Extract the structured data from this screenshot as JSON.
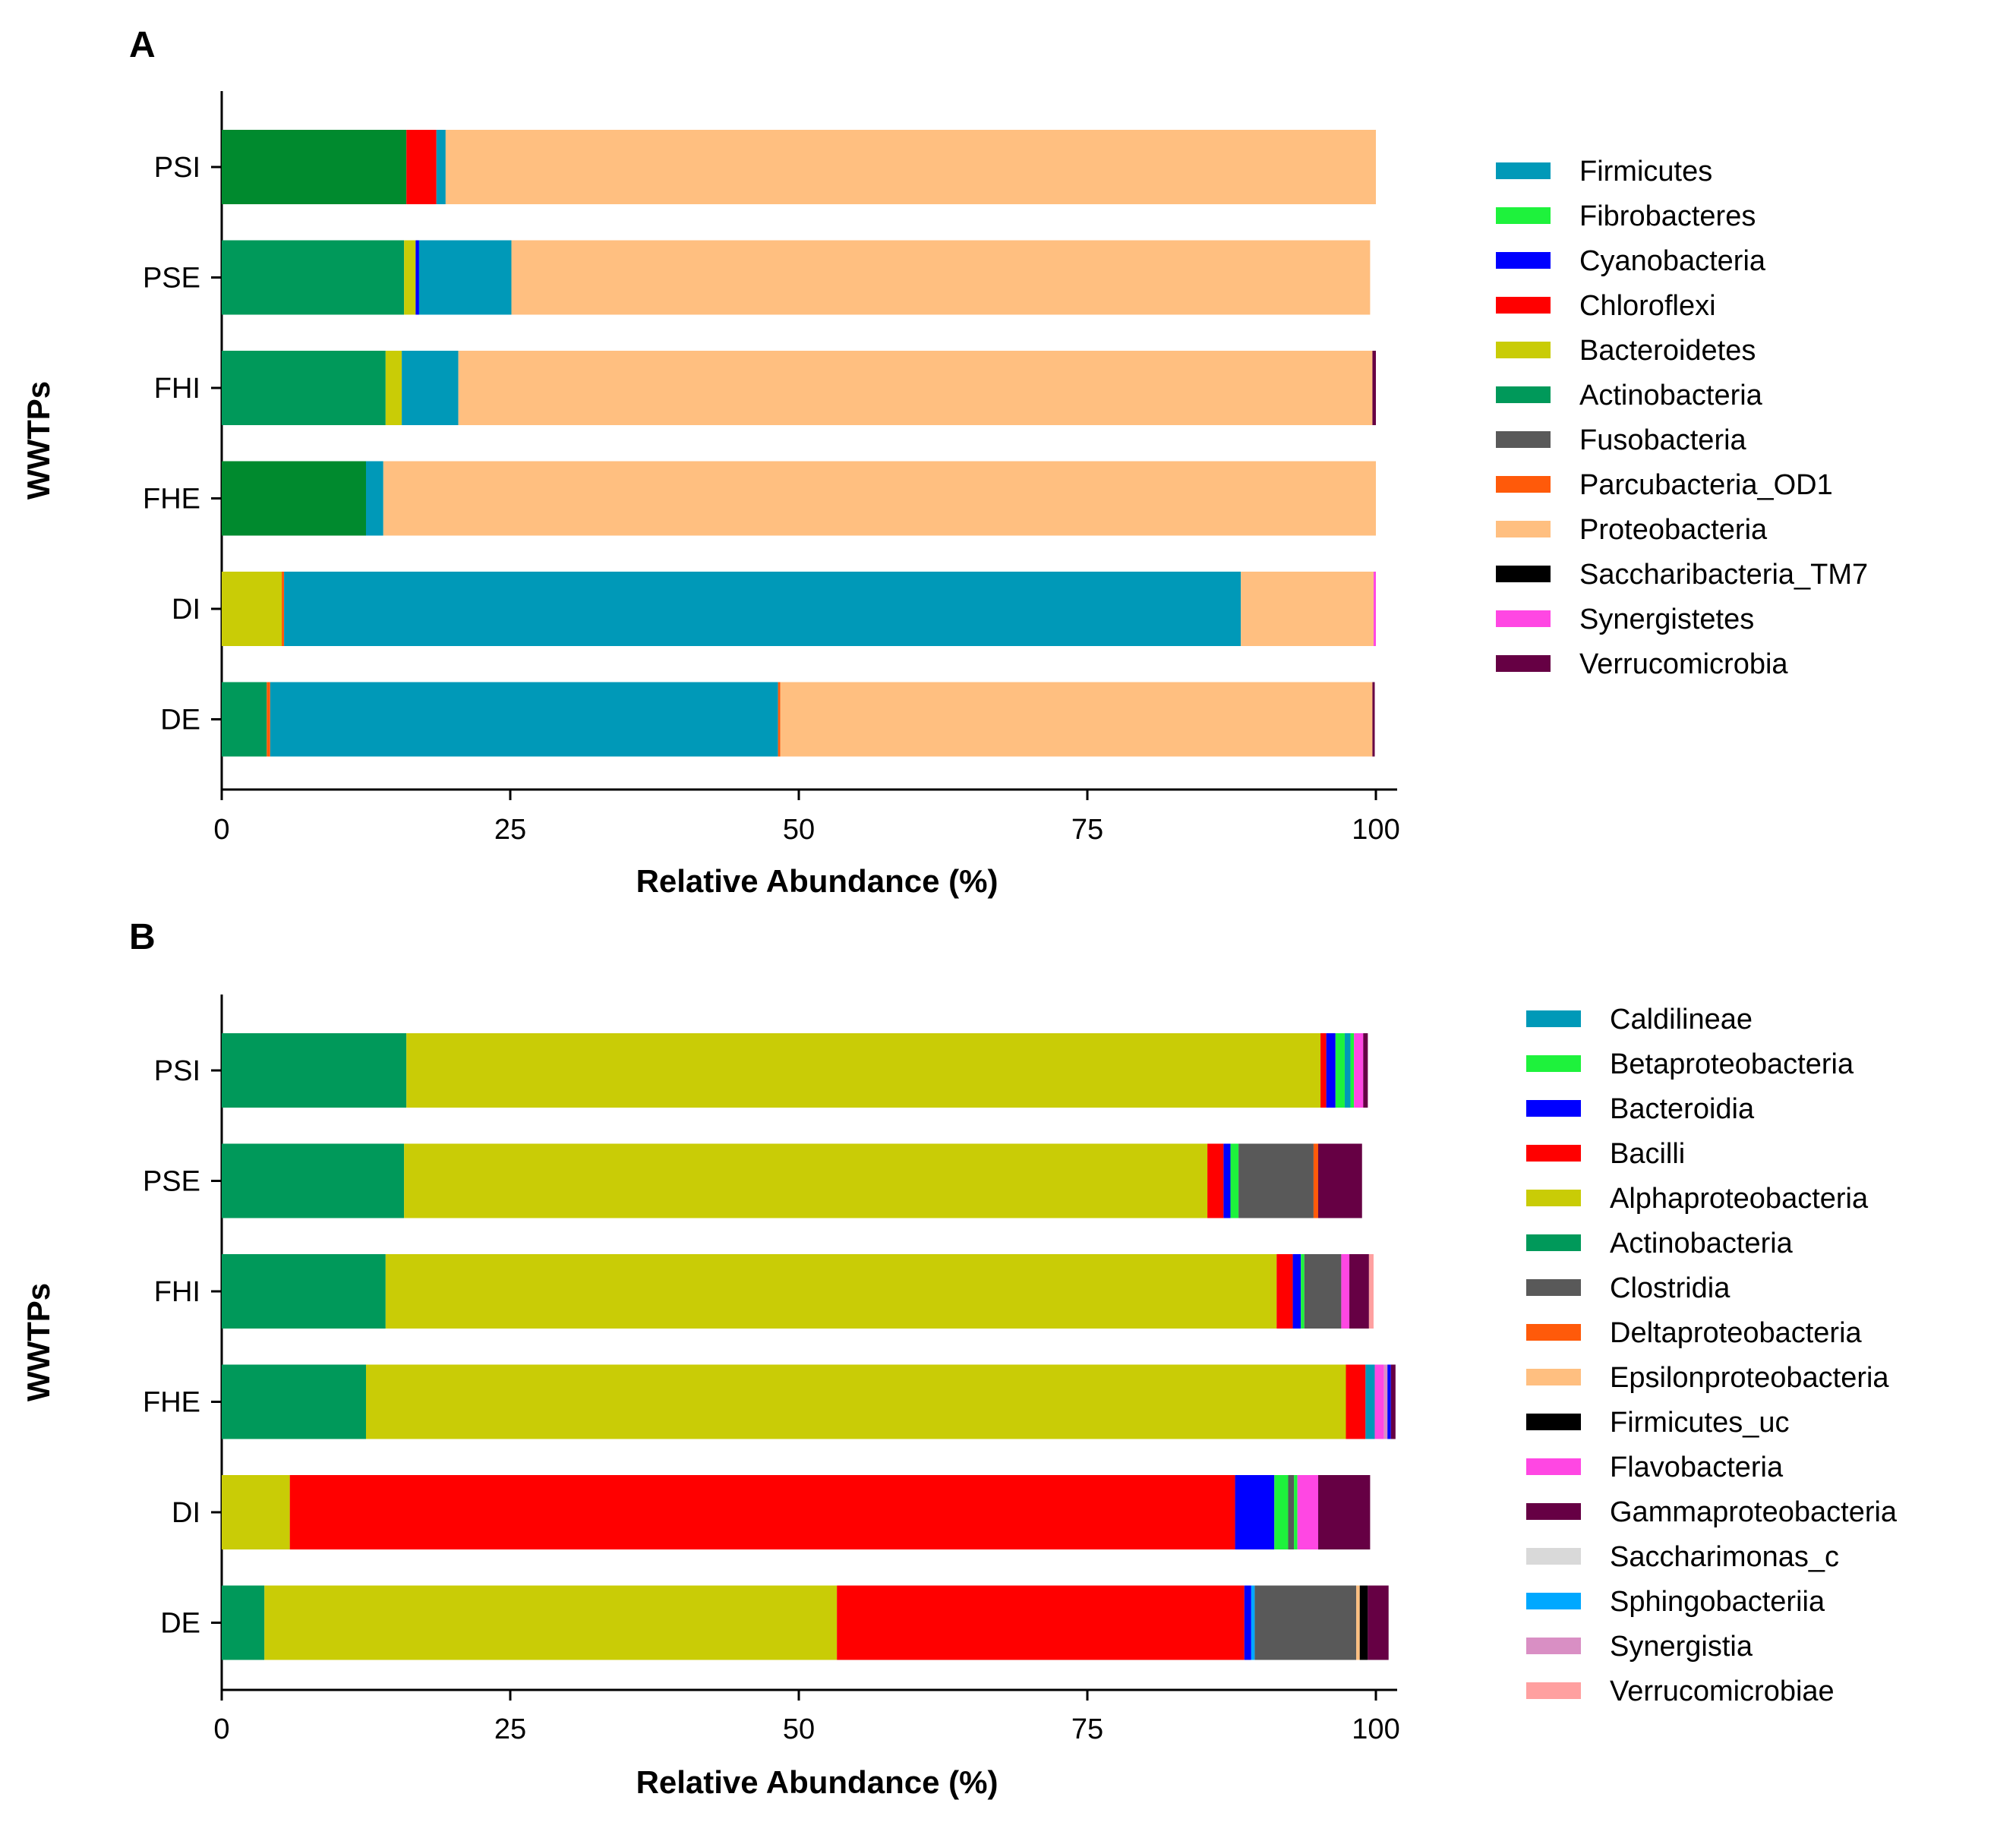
{
  "chart_data": [
    {
      "panel": "A",
      "type": "bar",
      "orientation": "horizontal",
      "stacked": true,
      "xlabel": "Relative Abundance (%)",
      "ylabel": "WWTPs",
      "xlim": [
        0,
        102
      ],
      "xticks": [
        0,
        25,
        50,
        75,
        100
      ],
      "categories": [
        "PSI",
        "PSE",
        "FHI",
        "FHE",
        "DI",
        "DE"
      ],
      "legend": [
        "Firmicutes",
        "Fibrobacteres",
        "Cyanobacteria",
        "Chloroflexi",
        "Bacteroidetes",
        "Actinobacteria",
        "Fusobacteria",
        "Parcubacteria_OD1",
        "Proteobacteria",
        "Saccharibacteria_TM7",
        "Synergistetes",
        "Verrucomicrobia"
      ],
      "colors": {
        "Firmicutes": "#0099b8",
        "Fibrobacteres": "#1ef23c",
        "Cyanobacteria": "#0000ff",
        "Chloroflexi": "#ff0000",
        "Bacteroidetes": "#c9cc06",
        "Actinobacteria": "#00995a",
        "Fusobacteria": "#595959",
        "Parcubacteria_OD1": "#ff5a0a",
        "Proteobacteria": "#ffbf80",
        "Saccharibacteria_TM7": "#000000",
        "Synergistetes": "#ff47e3",
        "Verrucomicrobia": "#660044"
      },
      "bars": [
        {
          "category": "PSI",
          "segments": [
            {
              "name": "Actinobacteria",
              "value": 16,
              "color": "#008a2e"
            },
            {
              "name": "Chloroflexi",
              "value": 2.6
            },
            {
              "name": "Firmicutes",
              "value": 0.8
            },
            {
              "name": "Proteobacteria",
              "value": 80.6
            }
          ]
        },
        {
          "category": "PSE",
          "segments": [
            {
              "name": "Actinobacteria",
              "value": 15.8
            },
            {
              "name": "Bacteroidetes",
              "value": 1.0
            },
            {
              "name": "Cyanobacteria",
              "value": 0.3
            },
            {
              "name": "Firmicutes",
              "value": 8.0
            },
            {
              "name": "Proteobacteria",
              "value": 74.4
            }
          ]
        },
        {
          "category": "FHI",
          "segments": [
            {
              "name": "Actinobacteria",
              "value": 14.2
            },
            {
              "name": "Bacteroidetes",
              "value": 1.4
            },
            {
              "name": "Firmicutes",
              "value": 4.9
            },
            {
              "name": "Proteobacteria",
              "value": 79.2
            },
            {
              "name": "Verrucomicrobia",
              "value": 0.3
            }
          ]
        },
        {
          "category": "FHE",
          "segments": [
            {
              "name": "Actinobacteria",
              "value": 12.5,
              "color": "#008a2e"
            },
            {
              "name": "Firmicutes",
              "value": 1.5
            },
            {
              "name": "Proteobacteria",
              "value": 86.0
            }
          ]
        },
        {
          "category": "DI",
          "segments": [
            {
              "name": "Bacteroidetes",
              "value": 5.2
            },
            {
              "name": "Parcubacteria_OD1",
              "value": 0.2
            },
            {
              "name": "Firmicutes",
              "value": 82.9
            },
            {
              "name": "Proteobacteria",
              "value": 11.5
            },
            {
              "name": "Synergistetes",
              "value": 0.2
            }
          ]
        },
        {
          "category": "DE",
          "segments": [
            {
              "name": "Actinobacteria",
              "value": 3.9
            },
            {
              "name": "Parcubacteria_OD1",
              "value": 0.3
            },
            {
              "name": "Firmicutes",
              "value": 44.0
            },
            {
              "name": "Parcubacteria_OD1",
              "value": 0.2
            },
            {
              "name": "Proteobacteria",
              "value": 51.3
            },
            {
              "name": "Verrucomicrobia",
              "value": 0.2
            }
          ]
        }
      ]
    },
    {
      "panel": "B",
      "type": "bar",
      "orientation": "horizontal",
      "stacked": true,
      "xlabel": "Relative Abundance (%)",
      "ylabel": "WWTPs",
      "xlim": [
        0,
        102
      ],
      "xticks": [
        0,
        25,
        50,
        75,
        100
      ],
      "categories": [
        "PSI",
        "PSE",
        "FHI",
        "FHE",
        "DI",
        "DE"
      ],
      "legend": [
        "Caldilineae",
        "Betaproteobacteria",
        "Bacteroidia",
        "Bacilli",
        "Alphaproteobacteria",
        "Actinobacteria",
        "Clostridia",
        "Deltaproteobacteria",
        "Epsilonproteobacteria",
        "Firmicutes_uc",
        "Flavobacteria",
        "Gammaproteobacteria",
        "Saccharimonas_c",
        "Sphingobacteriia",
        "Synergistia",
        "Verrucomicrobiae"
      ],
      "colors": {
        "Caldilineae": "#0099b8",
        "Betaproteobacteria": "#1ef23c",
        "Bacteroidia": "#0000ff",
        "Bacilli": "#ff0000",
        "Alphaproteobacteria": "#c9cc06",
        "Actinobacteria": "#00995a",
        "Clostridia": "#595959",
        "Deltaproteobacteria": "#ff5a0a",
        "Epsilonproteobacteria": "#ffbf80",
        "Firmicutes_uc": "#000000",
        "Flavobacteria": "#ff47e3",
        "Gammaproteobacteria": "#660044",
        "Saccharimonas_c": "#d9d9d9",
        "Sphingobacteriia": "#00a8ff",
        "Synergistia": "#d98fc4",
        "Verrucomicrobiae": "#ffa0a0"
      },
      "bars": [
        {
          "category": "PSI",
          "segments": [
            {
              "name": "Actinobacteria",
              "value": 16
            },
            {
              "name": "Alphaproteobacteria",
              "value": 79.2
            },
            {
              "name": "Bacilli",
              "value": 0.5
            },
            {
              "name": "Bacteroidia",
              "value": 0.8
            },
            {
              "name": "Betaproteobacteria",
              "value": 0.8
            },
            {
              "name": "Caldilineae",
              "value": 0.5
            },
            {
              "name": "Betaproteobacteria",
              "value": 0.3
            },
            {
              "name": "Flavobacteria",
              "value": 0.8
            },
            {
              "name": "Gammaproteobacteria",
              "value": 0.4
            }
          ]
        },
        {
          "category": "PSE",
          "segments": [
            {
              "name": "Actinobacteria",
              "value": 15.8
            },
            {
              "name": "Alphaproteobacteria",
              "value": 69.6
            },
            {
              "name": "Bacilli",
              "value": 1.4
            },
            {
              "name": "Bacteroidia",
              "value": 0.6
            },
            {
              "name": "Betaproteobacteria",
              "value": 0.7
            },
            {
              "name": "Clostridia",
              "value": 6.5
            },
            {
              "name": "Deltaproteobacteria",
              "value": 0.4
            },
            {
              "name": "Gammaproteobacteria",
              "value": 3.8
            }
          ]
        },
        {
          "category": "FHI",
          "segments": [
            {
              "name": "Actinobacteria",
              "value": 14.2
            },
            {
              "name": "Alphaproteobacteria",
              "value": 77.2
            },
            {
              "name": "Bacilli",
              "value": 1.4
            },
            {
              "name": "Bacteroidia",
              "value": 0.7
            },
            {
              "name": "Betaproteobacteria",
              "value": 0.3
            },
            {
              "name": "Clostridia",
              "value": 3.2
            },
            {
              "name": "Flavobacteria",
              "value": 0.7
            },
            {
              "name": "Gammaproteobacteria",
              "value": 1.7
            },
            {
              "name": "Verrucomicrobiae",
              "value": 0.4
            }
          ]
        },
        {
          "category": "FHE",
          "segments": [
            {
              "name": "Actinobacteria",
              "value": 12.5
            },
            {
              "name": "Alphaproteobacteria",
              "value": 84.9
            },
            {
              "name": "Bacilli",
              "value": 1.7
            },
            {
              "name": "Caldilineae",
              "value": 0.8
            },
            {
              "name": "Flavobacteria",
              "value": 0.8
            },
            {
              "name": "Synergistia",
              "value": 0.3
            },
            {
              "name": "Bacteroidia",
              "value": 0.3
            },
            {
              "name": "Gammaproteobacteria",
              "value": 0.4
            }
          ]
        },
        {
          "category": "DI",
          "segments": [
            {
              "name": "Alphaproteobacteria",
              "value": 5.9
            },
            {
              "name": "Bacilli",
              "value": 81.9
            },
            {
              "name": "Bacteroidia",
              "value": 3.4
            },
            {
              "name": "Betaproteobacteria",
              "value": 1.2
            },
            {
              "name": "Clostridia",
              "value": 0.5
            },
            {
              "name": "Betaproteobacteria",
              "value": 0.3
            },
            {
              "name": "Flavobacteria",
              "value": 1.8
            },
            {
              "name": "Gammaproteobacteria",
              "value": 4.5
            }
          ]
        },
        {
          "category": "DE",
          "segments": [
            {
              "name": "Actinobacteria",
              "value": 3.7
            },
            {
              "name": "Alphaproteobacteria",
              "value": 49.6
            },
            {
              "name": "Bacilli",
              "value": 35.3
            },
            {
              "name": "Bacteroidia",
              "value": 0.6
            },
            {
              "name": "Sphingobacteriia",
              "value": 0.3
            },
            {
              "name": "Clostridia",
              "value": 8.8
            },
            {
              "name": "Epsilonproteobacteria",
              "value": 0.3
            },
            {
              "name": "Firmicutes_uc",
              "value": 0.7
            },
            {
              "name": "Gammaproteobacteria",
              "value": 1.8
            }
          ]
        }
      ]
    }
  ]
}
